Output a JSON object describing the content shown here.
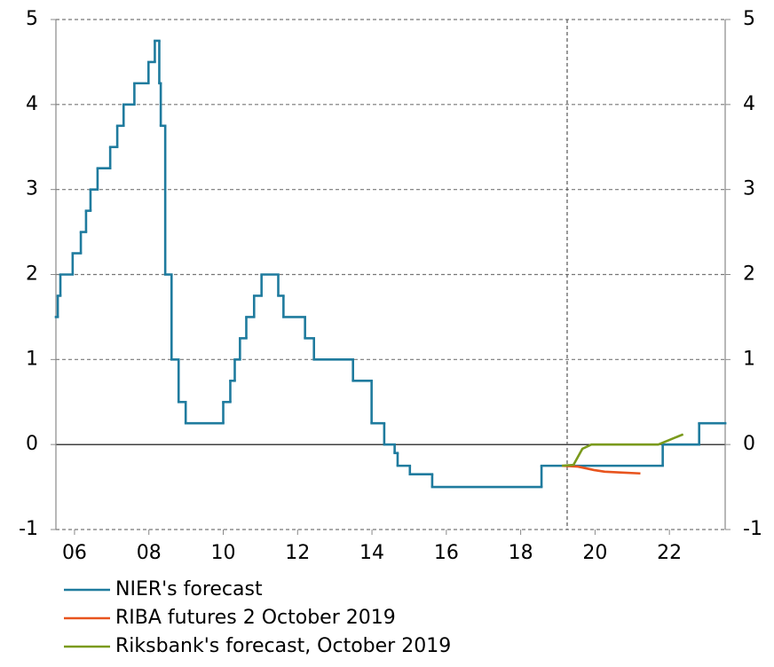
{
  "chart_data": {
    "type": "line",
    "xlim": [
      2006,
      2024
    ],
    "ylim": [
      -1,
      5
    ],
    "y2lim": [
      -1,
      5
    ],
    "xticks": [
      {
        "value": 2006.5,
        "label": "06"
      },
      {
        "value": 2008.5,
        "label": "08"
      },
      {
        "value": 2010.5,
        "label": "10"
      },
      {
        "value": 2012.5,
        "label": "12"
      },
      {
        "value": 2014.5,
        "label": "14"
      },
      {
        "value": 2016.5,
        "label": "16"
      },
      {
        "value": 2018.5,
        "label": "18"
      },
      {
        "value": 2020.5,
        "label": "20"
      },
      {
        "value": 2022.5,
        "label": "22"
      }
    ],
    "yticks": [
      -1,
      0,
      1,
      2,
      3,
      4,
      5
    ],
    "y2ticks": [
      -1,
      0,
      1,
      2,
      3,
      4,
      5
    ],
    "grid": true,
    "forecast_start": 2019.75,
    "series": [
      {
        "name": "NIER's forecast",
        "color": "#1f7b9e",
        "step": true,
        "x": [
          2006,
          2006.05,
          2006.12,
          2006.45,
          2006.67,
          2006.81,
          2006.93,
          2007.12,
          2007.46,
          2007.65,
          2007.82,
          2008.11,
          2008.49,
          2008.66,
          2008.78,
          2008.82,
          2008.94,
          2009.11,
          2009.3,
          2009.49,
          2010.5,
          2010.69,
          2010.81,
          2010.95,
          2011.12,
          2011.33,
          2011.53,
          2011.98,
          2012.12,
          2012.7,
          2012.94,
          2013.99,
          2014.49,
          2014.83,
          2015.11,
          2015.19,
          2015.52,
          2016.12,
          2019.06,
          2022.32,
          2023.3,
          2024
        ],
        "values": [
          1.5,
          1.75,
          2.0,
          2.25,
          2.5,
          2.75,
          3.0,
          3.25,
          3.5,
          3.75,
          4.0,
          4.25,
          4.5,
          4.75,
          4.25,
          3.75,
          2.0,
          1.0,
          0.5,
          0.25,
          0.5,
          0.75,
          1.0,
          1.25,
          1.5,
          1.75,
          2.0,
          1.75,
          1.5,
          1.25,
          1.0,
          0.75,
          0.25,
          0.0,
          -0.1,
          -0.25,
          -0.35,
          -0.5,
          -0.25,
          0.0,
          0.25,
          0.25
        ]
      },
      {
        "name": "RIBA futures 2 October 2019",
        "color": "#e8541e",
        "x": [
          2019.61,
          2020.04,
          2020.47,
          2020.76,
          2021.24,
          2021.72
        ],
        "values": [
          -0.25,
          -0.26,
          -0.3,
          -0.32,
          -0.33,
          -0.34
        ]
      },
      {
        "name": "Riksbank's forecast, October 2019",
        "color": "#7a9a1c",
        "x": [
          2019.61,
          2019.92,
          2020.16,
          2020.4,
          2022.2,
          2022.87
        ],
        "values": [
          -0.25,
          -0.24,
          -0.05,
          0,
          0,
          0.12
        ]
      }
    ]
  }
}
